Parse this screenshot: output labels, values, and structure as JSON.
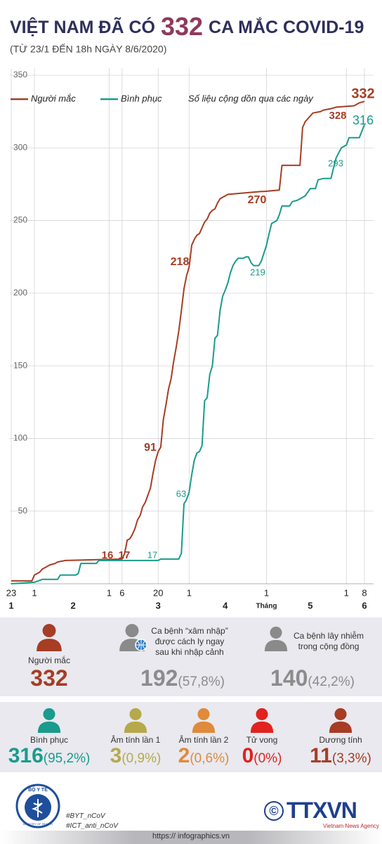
{
  "header": {
    "title_pre": "VIỆT NAM ĐÃ CÓ",
    "title_num": "332",
    "title_post": "CA MẮC COVID-19",
    "subtitle": "(TỪ 23/1 ĐẾN 18h NGÀY 8/6/2020)"
  },
  "chart_data": {
    "type": "line",
    "note": "Số liệu cộng dồn qua các ngày",
    "xlim": [
      0,
      137
    ],
    "ylim": [
      0,
      350
    ],
    "yticks": [
      50,
      100,
      150,
      200,
      250,
      300,
      350
    ],
    "xticks": [
      {
        "value": 0,
        "label": "23"
      },
      {
        "value": 9,
        "label": "1"
      },
      {
        "value": 38,
        "label": "1"
      },
      {
        "value": 43,
        "label": "6"
      },
      {
        "value": 57,
        "label": "20"
      },
      {
        "value": 69,
        "label": "1"
      },
      {
        "value": 99,
        "label": "1"
      },
      {
        "value": 130,
        "label": "1"
      },
      {
        "value": 137,
        "label": "8"
      }
    ],
    "month_labels": [
      {
        "value": 0,
        "label": "1"
      },
      {
        "value": 24,
        "label": "2"
      },
      {
        "value": 57,
        "label": "3"
      },
      {
        "value": 83,
        "label": "4"
      },
      {
        "value": 99,
        "label": "Tháng"
      },
      {
        "value": 116,
        "label": "5"
      },
      {
        "value": 137,
        "label": "6"
      }
    ],
    "grid": true,
    "series": [
      {
        "name": "Người mắc",
        "color": "#a63d24",
        "x": [
          0,
          8,
          9,
          10,
          11,
          12,
          14,
          15,
          17,
          18,
          21,
          43,
          44,
          45,
          46,
          47,
          48,
          49,
          50,
          51,
          52,
          53,
          54,
          55,
          56,
          57,
          58,
          59,
          60,
          61,
          62,
          63,
          64,
          65,
          66,
          67,
          68,
          69,
          70,
          71,
          72,
          73,
          74,
          75,
          76,
          77,
          78,
          79,
          80,
          81,
          82,
          83,
          84,
          97,
          98,
          104,
          105,
          112,
          113,
          114,
          115,
          117,
          120,
          121,
          124,
          126,
          133,
          135,
          137
        ],
        "values": [
          2,
          2,
          6,
          7,
          8,
          10,
          12,
          13,
          14,
          15,
          16,
          17,
          21,
          30,
          31,
          34,
          38,
          44,
          47,
          53,
          56,
          61,
          66,
          76,
          85,
          91,
          94,
          113,
          123,
          134,
          141,
          153,
          163,
          174,
          188,
          203,
          212,
          218,
          233,
          237,
          240,
          241,
          245,
          249,
          251,
          255,
          257,
          258,
          262,
          265,
          266,
          267,
          268,
          270,
          270,
          271,
          288,
          288,
          314,
          318,
          320,
          324,
          325,
          326,
          327,
          328,
          329,
          331,
          332
        ]
      },
      {
        "name": "Bình phục",
        "color": "#1a9b8c",
        "x": [
          0,
          9,
          12,
          18,
          19,
          25,
          26,
          27,
          33,
          34,
          57,
          58,
          65,
          66,
          67,
          68,
          69,
          70,
          71,
          72,
          73,
          74,
          75,
          76,
          77,
          78,
          79,
          80,
          81,
          82,
          83,
          84,
          85,
          86,
          87,
          88,
          90,
          91,
          92,
          93,
          94,
          96,
          97,
          99,
          100,
          101,
          103,
          104,
          105,
          108,
          109,
          111,
          114,
          116,
          118,
          119,
          121,
          124,
          125,
          126,
          128,
          130,
          131,
          135,
          137
        ],
        "values": [
          0,
          1,
          3,
          3,
          6,
          6,
          7,
          14,
          14,
          16,
          16,
          17,
          17,
          21,
          55,
          58,
          63,
          75,
          85,
          90,
          91,
          95,
          126,
          128,
          144,
          150,
          169,
          171,
          188,
          198,
          202,
          207,
          214,
          219,
          222,
          224,
          224,
          225,
          225,
          221,
          219,
          219,
          222,
          233,
          241,
          248,
          250,
          254,
          260,
          260,
          263,
          264,
          267,
          272,
          272,
          278,
          279,
          279,
          286,
          293,
          300,
          302,
          307,
          307,
          316
        ]
      }
    ]
  },
  "stats_main": [
    {
      "label": "Người mắc",
      "value": 332
    },
    {
      "label_lines": [
        "Ca bệnh “xâm nhập”",
        "được cách ly ngay",
        "sau khi nhập cảnh"
      ],
      "value": 192,
      "share": "(57,8%)"
    },
    {
      "label_lines": [
        "Ca bệnh lây nhiễm",
        "trong cộng đồng"
      ],
      "value": 140,
      "share": "(42,2%)"
    }
  ],
  "stats_detail": [
    {
      "label": "Bình phục",
      "value": 316,
      "share": "(95,2%)"
    },
    {
      "label": "Âm tính lần 1",
      "value": 3,
      "share": "(0,9%)"
    },
    {
      "label": "Âm tính lần 2",
      "value": 2,
      "share": "(0,6%)"
    },
    {
      "label": "Tử vong",
      "value": 0,
      "share": "(0%)"
    },
    {
      "label": "Dương tính",
      "value": 11,
      "share": "(3,3%)"
    }
  ],
  "footer": {
    "ministry": "BỘ Y TẾ",
    "ministry_en": "MINISTRY OF HEALTH",
    "tags": [
      "#BYT_nCoV",
      "#ICT_anti_nCoV"
    ],
    "copyright": "©",
    "agency": "TTXVN",
    "agency_en": "Vietnam News Agency",
    "url": "https:// infographics.vn"
  }
}
